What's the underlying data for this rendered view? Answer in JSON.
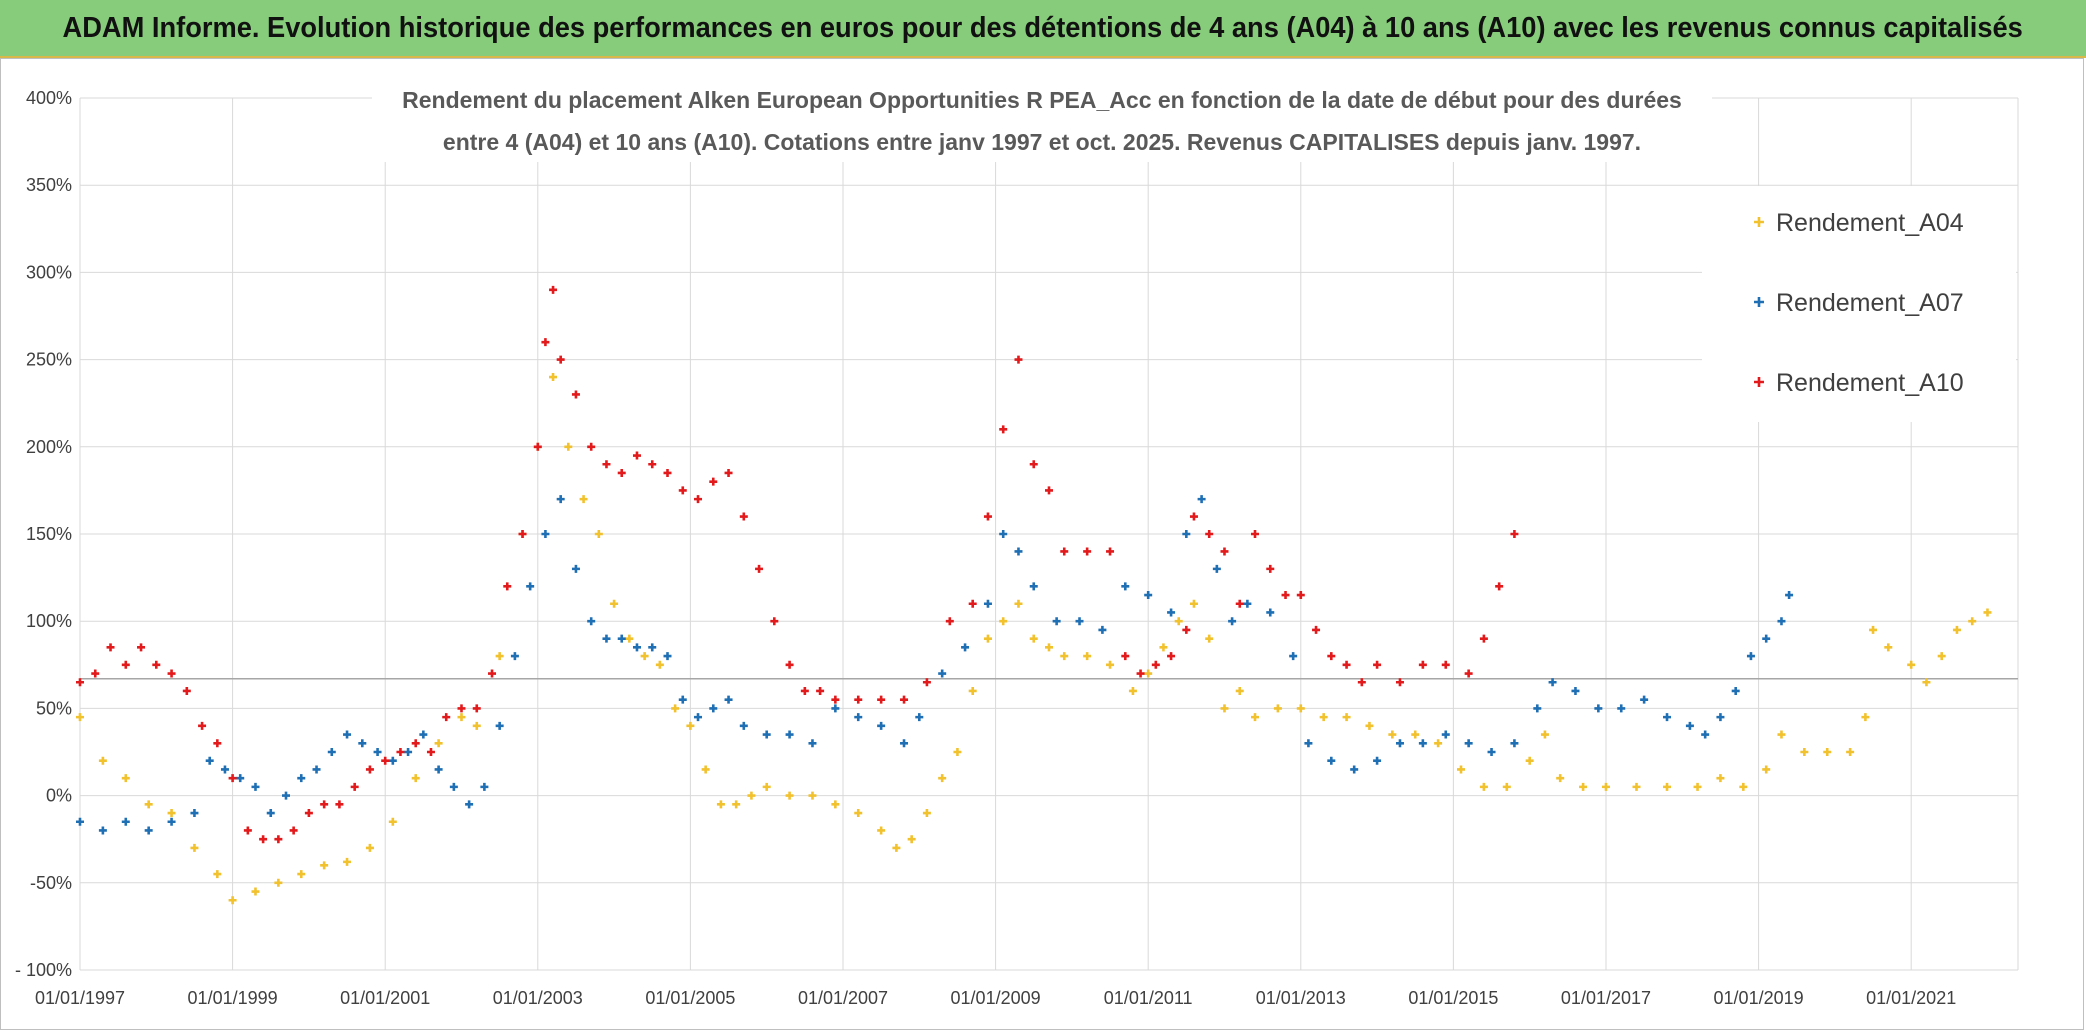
{
  "header": {
    "banner": "ADAM Informe. Evolution historique des performances en euros pour des détentions de 4 ans (A04) à 10 ans (A10) avec les revenus connus capitalisés"
  },
  "chart_data": {
    "type": "scatter",
    "title_line1": "Rendement du placement Alken European Opportunities R PEA_Acc en fonction de la date de début pour des durées",
    "title_line2": "entre 4 (A04) et 10 ans (A10). Cotations entre janv 1997 et oct. 2025. Revenus CAPITALISES depuis janv. 1997.",
    "xlabel": "",
    "ylabel": "",
    "x_range": [
      "1997-01-01",
      "2022-01-01"
    ],
    "ylim": [
      -100,
      400
    ],
    "y_ticks": [
      -100,
      -50,
      0,
      50,
      100,
      150,
      200,
      250,
      300,
      350,
      400
    ],
    "y_tick_labels": [
      "- 100%",
      "-50%",
      "0%",
      "50%",
      "100%",
      "150%",
      "200%",
      "250%",
      "300%",
      "350%",
      "400%"
    ],
    "x_tick_labels": [
      "01/01/1997",
      "01/01/1999",
      "01/01/2001",
      "01/01/2003",
      "01/01/2005",
      "01/01/2007",
      "01/01/2009",
      "01/01/2011",
      "01/01/2013",
      "01/01/2015",
      "01/01/2017",
      "01/01/2019",
      "01/01/2021"
    ],
    "reference_line_y": 67,
    "grid": true,
    "legend_position": "right",
    "series": [
      {
        "name": "Rendement_A04",
        "color": "#f2c12e",
        "points": [
          [
            1997.0,
            45
          ],
          [
            1997.3,
            20
          ],
          [
            1997.6,
            10
          ],
          [
            1997.9,
            -5
          ],
          [
            1998.2,
            -10
          ],
          [
            1998.5,
            -30
          ],
          [
            1998.8,
            -45
          ],
          [
            1999.0,
            -60
          ],
          [
            1999.3,
            -55
          ],
          [
            1999.6,
            -50
          ],
          [
            1999.9,
            -45
          ],
          [
            2000.2,
            -40
          ],
          [
            2000.5,
            -38
          ],
          [
            2000.8,
            -30
          ],
          [
            2001.1,
            -15
          ],
          [
            2001.4,
            10
          ],
          [
            2001.7,
            30
          ],
          [
            2002.0,
            45
          ],
          [
            2002.2,
            40
          ],
          [
            2002.5,
            80
          ],
          [
            2002.8,
            150
          ],
          [
            2003.0,
            200
          ],
          [
            2003.2,
            240
          ],
          [
            2003.4,
            200
          ],
          [
            2003.6,
            170
          ],
          [
            2003.8,
            150
          ],
          [
            2004.0,
            110
          ],
          [
            2004.2,
            90
          ],
          [
            2004.4,
            80
          ],
          [
            2004.6,
            75
          ],
          [
            2004.8,
            50
          ],
          [
            2005.0,
            40
          ],
          [
            2005.2,
            15
          ],
          [
            2005.4,
            -5
          ],
          [
            2005.6,
            -5
          ],
          [
            2005.8,
            0
          ],
          [
            2006.0,
            5
          ],
          [
            2006.3,
            0
          ],
          [
            2006.6,
            0
          ],
          [
            2006.9,
            -5
          ],
          [
            2007.2,
            -10
          ],
          [
            2007.5,
            -20
          ],
          [
            2007.7,
            -30
          ],
          [
            2007.9,
            -25
          ],
          [
            2008.1,
            -10
          ],
          [
            2008.3,
            10
          ],
          [
            2008.5,
            25
          ],
          [
            2008.7,
            60
          ],
          [
            2008.9,
            90
          ],
          [
            2009.1,
            100
          ],
          [
            2009.3,
            110
          ],
          [
            2009.5,
            90
          ],
          [
            2009.7,
            85
          ],
          [
            2009.9,
            80
          ],
          [
            2010.2,
            80
          ],
          [
            2010.5,
            75
          ],
          [
            2010.8,
            60
          ],
          [
            2011.0,
            70
          ],
          [
            2011.2,
            85
          ],
          [
            2011.4,
            100
          ],
          [
            2011.6,
            110
          ],
          [
            2011.8,
            90
          ],
          [
            2012.0,
            50
          ],
          [
            2012.2,
            60
          ],
          [
            2012.4,
            45
          ],
          [
            2012.7,
            50
          ],
          [
            2013.0,
            50
          ],
          [
            2013.3,
            45
          ],
          [
            2013.6,
            45
          ],
          [
            2013.9,
            40
          ],
          [
            2014.2,
            35
          ],
          [
            2014.5,
            35
          ],
          [
            2014.8,
            30
          ],
          [
            2015.1,
            15
          ],
          [
            2015.4,
            5
          ],
          [
            2015.7,
            5
          ],
          [
            2016.0,
            20
          ],
          [
            2016.2,
            35
          ],
          [
            2016.4,
            10
          ],
          [
            2016.7,
            5
          ],
          [
            2017.0,
            5
          ],
          [
            2017.4,
            5
          ],
          [
            2017.8,
            5
          ],
          [
            2018.2,
            5
          ],
          [
            2018.5,
            10
          ],
          [
            2018.8,
            5
          ],
          [
            2019.1,
            15
          ],
          [
            2019.3,
            35
          ],
          [
            2019.6,
            25
          ],
          [
            2019.9,
            25
          ],
          [
            2020.2,
            25
          ],
          [
            2020.4,
            45
          ],
          [
            2020.5,
            95
          ],
          [
            2020.7,
            85
          ],
          [
            2021.0,
            75
          ],
          [
            2021.2,
            65
          ],
          [
            2021.4,
            80
          ],
          [
            2021.6,
            95
          ],
          [
            2021.8,
            100
          ],
          [
            2022.0,
            105
          ]
        ]
      },
      {
        "name": "Rendement_A07",
        "color": "#1f6fb4",
        "points": [
          [
            1997.0,
            -15
          ],
          [
            1997.3,
            -20
          ],
          [
            1997.6,
            -15
          ],
          [
            1997.9,
            -20
          ],
          [
            1998.2,
            -15
          ],
          [
            1998.5,
            -10
          ],
          [
            1998.7,
            20
          ],
          [
            1998.9,
            15
          ],
          [
            1999.1,
            10
          ],
          [
            1999.3,
            5
          ],
          [
            1999.5,
            -10
          ],
          [
            1999.7,
            0
          ],
          [
            1999.9,
            10
          ],
          [
            2000.1,
            15
          ],
          [
            2000.3,
            25
          ],
          [
            2000.5,
            35
          ],
          [
            2000.7,
            30
          ],
          [
            2000.9,
            25
          ],
          [
            2001.1,
            20
          ],
          [
            2001.3,
            25
          ],
          [
            2001.5,
            35
          ],
          [
            2001.7,
            15
          ],
          [
            2001.9,
            5
          ],
          [
            2002.1,
            -5
          ],
          [
            2002.3,
            5
          ],
          [
            2002.5,
            40
          ],
          [
            2002.7,
            80
          ],
          [
            2002.9,
            120
          ],
          [
            2003.1,
            150
          ],
          [
            2003.3,
            170
          ],
          [
            2003.5,
            130
          ],
          [
            2003.7,
            100
          ],
          [
            2003.9,
            90
          ],
          [
            2004.1,
            90
          ],
          [
            2004.3,
            85
          ],
          [
            2004.5,
            85
          ],
          [
            2004.7,
            80
          ],
          [
            2004.9,
            55
          ],
          [
            2005.1,
            45
          ],
          [
            2005.3,
            50
          ],
          [
            2005.5,
            55
          ],
          [
            2005.7,
            40
          ],
          [
            2006.0,
            35
          ],
          [
            2006.3,
            35
          ],
          [
            2006.6,
            30
          ],
          [
            2006.9,
            50
          ],
          [
            2007.2,
            45
          ],
          [
            2007.5,
            40
          ],
          [
            2007.8,
            30
          ],
          [
            2008.0,
            45
          ],
          [
            2008.3,
            70
          ],
          [
            2008.6,
            85
          ],
          [
            2008.9,
            110
          ],
          [
            2009.1,
            150
          ],
          [
            2009.3,
            140
          ],
          [
            2009.5,
            120
          ],
          [
            2009.8,
            100
          ],
          [
            2010.1,
            100
          ],
          [
            2010.4,
            95
          ],
          [
            2010.7,
            120
          ],
          [
            2011.0,
            115
          ],
          [
            2011.3,
            105
          ],
          [
            2011.5,
            150
          ],
          [
            2011.7,
            170
          ],
          [
            2011.9,
            130
          ],
          [
            2012.1,
            100
          ],
          [
            2012.3,
            110
          ],
          [
            2012.6,
            105
          ],
          [
            2012.9,
            80
          ],
          [
            2013.1,
            30
          ],
          [
            2013.4,
            20
          ],
          [
            2013.7,
            15
          ],
          [
            2014.0,
            20
          ],
          [
            2014.3,
            30
          ],
          [
            2014.6,
            30
          ],
          [
            2014.9,
            35
          ],
          [
            2015.2,
            30
          ],
          [
            2015.5,
            25
          ],
          [
            2015.8,
            30
          ],
          [
            2016.1,
            50
          ],
          [
            2016.3,
            65
          ],
          [
            2016.6,
            60
          ],
          [
            2016.9,
            50
          ],
          [
            2017.2,
            50
          ],
          [
            2017.5,
            55
          ],
          [
            2017.8,
            45
          ],
          [
            2018.1,
            40
          ],
          [
            2018.3,
            35
          ],
          [
            2018.5,
            45
          ],
          [
            2018.7,
            60
          ],
          [
            2018.9,
            80
          ],
          [
            2019.1,
            90
          ],
          [
            2019.3,
            100
          ],
          [
            2019.4,
            115
          ]
        ]
      },
      {
        "name": "Rendement_A10",
        "color": "#e31a1c",
        "points": [
          [
            1997.0,
            65
          ],
          [
            1997.2,
            70
          ],
          [
            1997.4,
            85
          ],
          [
            1997.6,
            75
          ],
          [
            1997.8,
            85
          ],
          [
            1998.0,
            75
          ],
          [
            1998.2,
            70
          ],
          [
            1998.4,
            60
          ],
          [
            1998.6,
            40
          ],
          [
            1998.8,
            30
          ],
          [
            1999.0,
            10
          ],
          [
            1999.2,
            -20
          ],
          [
            1999.4,
            -25
          ],
          [
            1999.6,
            -25
          ],
          [
            1999.8,
            -20
          ],
          [
            2000.0,
            -10
          ],
          [
            2000.2,
            -5
          ],
          [
            2000.4,
            -5
          ],
          [
            2000.6,
            5
          ],
          [
            2000.8,
            15
          ],
          [
            2001.0,
            20
          ],
          [
            2001.2,
            25
          ],
          [
            2001.4,
            30
          ],
          [
            2001.6,
            25
          ],
          [
            2001.8,
            45
          ],
          [
            2002.0,
            50
          ],
          [
            2002.2,
            50
          ],
          [
            2002.4,
            70
          ],
          [
            2002.6,
            120
          ],
          [
            2002.8,
            150
          ],
          [
            2003.0,
            200
          ],
          [
            2003.1,
            260
          ],
          [
            2003.2,
            290
          ],
          [
            2003.3,
            250
          ],
          [
            2003.5,
            230
          ],
          [
            2003.7,
            200
          ],
          [
            2003.9,
            190
          ],
          [
            2004.1,
            185
          ],
          [
            2004.3,
            195
          ],
          [
            2004.5,
            190
          ],
          [
            2004.7,
            185
          ],
          [
            2004.9,
            175
          ],
          [
            2005.1,
            170
          ],
          [
            2005.3,
            180
          ],
          [
            2005.5,
            185
          ],
          [
            2005.7,
            160
          ],
          [
            2005.9,
            130
          ],
          [
            2006.1,
            100
          ],
          [
            2006.3,
            75
          ],
          [
            2006.5,
            60
          ],
          [
            2006.7,
            60
          ],
          [
            2006.9,
            55
          ],
          [
            2007.2,
            55
          ],
          [
            2007.5,
            55
          ],
          [
            2007.8,
            55
          ],
          [
            2008.1,
            65
          ],
          [
            2008.4,
            100
          ],
          [
            2008.7,
            110
          ],
          [
            2008.9,
            160
          ],
          [
            2009.1,
            210
          ],
          [
            2009.3,
            250
          ],
          [
            2009.5,
            190
          ],
          [
            2009.7,
            175
          ],
          [
            2009.9,
            140
          ],
          [
            2010.2,
            140
          ],
          [
            2010.5,
            140
          ],
          [
            2010.7,
            80
          ],
          [
            2010.9,
            70
          ],
          [
            2011.1,
            75
          ],
          [
            2011.3,
            80
          ],
          [
            2011.5,
            95
          ],
          [
            2011.6,
            160
          ],
          [
            2011.8,
            150
          ],
          [
            2012.0,
            140
          ],
          [
            2012.2,
            110
          ],
          [
            2012.4,
            150
          ],
          [
            2012.6,
            130
          ],
          [
            2012.8,
            115
          ],
          [
            2013.0,
            115
          ],
          [
            2013.2,
            95
          ],
          [
            2013.4,
            80
          ],
          [
            2013.6,
            75
          ],
          [
            2013.8,
            65
          ],
          [
            2014.0,
            75
          ],
          [
            2014.3,
            65
          ],
          [
            2014.6,
            75
          ],
          [
            2014.9,
            75
          ],
          [
            2015.2,
            70
          ],
          [
            2015.4,
            90
          ],
          [
            2015.6,
            120
          ],
          [
            2015.8,
            150
          ]
        ]
      }
    ]
  }
}
